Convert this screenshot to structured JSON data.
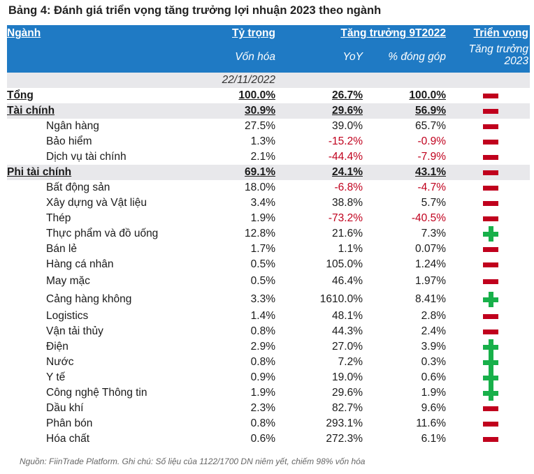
{
  "title": "Bảng 4: Đánh giá triển vọng tăng trưởng lợi nhuận 2023 theo ngành",
  "header": {
    "sector": "Ngành",
    "weight": "Tỷ trọng",
    "growth": "Tăng trưởng 9T2022",
    "outlook": "Triển vọng",
    "weight_sub": "Vốn hóa",
    "yoy": "YoY",
    "contribution": "% đóng góp",
    "outlook_sub_1": "Tăng trưởng",
    "outlook_sub_2": "2023",
    "date": "22/11/2022"
  },
  "rows": [
    {
      "name": "Tổng",
      "weight": "100.0%",
      "yoy": "26.7%",
      "contrib": "100.0%",
      "outlook": "minus",
      "level": "group"
    },
    {
      "name": "Tài chính",
      "weight": "30.9%",
      "yoy": "29.6%",
      "contrib": "56.9%",
      "outlook": "minus",
      "level": "group-shaded"
    },
    {
      "name": "Ngân hàng",
      "weight": "27.5%",
      "yoy": "39.0%",
      "contrib": "65.7%",
      "outlook": "minus",
      "level": "sub"
    },
    {
      "name": "Bảo hiểm",
      "weight": "1.3%",
      "yoy": "-15.2%",
      "contrib": "-0.9%",
      "outlook": "minus",
      "level": "sub"
    },
    {
      "name": "Dịch vụ tài chính",
      "weight": "2.1%",
      "yoy": "-44.4%",
      "contrib": "-7.9%",
      "outlook": "minus",
      "level": "sub"
    },
    {
      "name": "Phi tài chính",
      "weight": "69.1%",
      "yoy": "24.1%",
      "contrib": "43.1%",
      "outlook": "minus",
      "level": "group-shaded"
    },
    {
      "name": "Bất động sản",
      "weight": "18.0%",
      "yoy": "-6.8%",
      "contrib": "-4.7%",
      "outlook": "minus",
      "level": "sub"
    },
    {
      "name": "Xây dựng và Vật liệu",
      "weight": "3.4%",
      "yoy": "38.8%",
      "contrib": "5.7%",
      "outlook": "minus",
      "level": "sub"
    },
    {
      "name": "Thép",
      "weight": "1.9%",
      "yoy": "-73.2%",
      "contrib": "-40.5%",
      "outlook": "minus",
      "level": "sub"
    },
    {
      "name": "Thực phẩm và đồ uống",
      "weight": "12.8%",
      "yoy": "21.6%",
      "contrib": "7.3%",
      "outlook": "plus",
      "level": "sub"
    },
    {
      "name": "Bán lẻ",
      "weight": "1.7%",
      "yoy": "1.1%",
      "contrib": "0.07%",
      "outlook": "minus",
      "level": "sub"
    },
    {
      "name": "Hàng cá nhân",
      "weight": "0.5%",
      "yoy": "105.0%",
      "contrib": "1.24%",
      "outlook": "minus",
      "level": "sub"
    },
    {
      "name": "May mặc",
      "weight": "0.5%",
      "yoy": "46.4%",
      "contrib": "1.97%",
      "outlook": "minus",
      "level": "sub-tall"
    },
    {
      "name": "Cảng hàng không",
      "weight": "3.3%",
      "yoy": "1610.0%",
      "contrib": "8.41%",
      "outlook": "plus",
      "level": "sub-tall"
    },
    {
      "name": "Logistics",
      "weight": "1.4%",
      "yoy": "48.1%",
      "contrib": "2.8%",
      "outlook": "minus",
      "level": "sub"
    },
    {
      "name": "Vận tải thủy",
      "weight": "0.8%",
      "yoy": "44.3%",
      "contrib": "2.4%",
      "outlook": "minus",
      "level": "sub"
    },
    {
      "name": "Điện",
      "weight": "2.9%",
      "yoy": "27.0%",
      "contrib": "3.9%",
      "outlook": "plus",
      "level": "sub"
    },
    {
      "name": "Nước",
      "weight": "0.8%",
      "yoy": "7.2%",
      "contrib": "0.3%",
      "outlook": "plus",
      "level": "sub"
    },
    {
      "name": "Y tế",
      "weight": "0.9%",
      "yoy": "19.0%",
      "contrib": "0.6%",
      "outlook": "plus",
      "level": "sub"
    },
    {
      "name": "Công nghệ Thông tin",
      "weight": "1.9%",
      "yoy": "29.6%",
      "contrib": "1.9%",
      "outlook": "plus",
      "level": "sub"
    },
    {
      "name": "Dầu khí",
      "weight": "2.3%",
      "yoy": "82.7%",
      "contrib": "9.6%",
      "outlook": "minus",
      "level": "sub"
    },
    {
      "name": "Phân bón",
      "weight": "0.8%",
      "yoy": "293.1%",
      "contrib": "11.6%",
      "outlook": "minus",
      "level": "sub"
    },
    {
      "name": "Hóa chất",
      "weight": "0.6%",
      "yoy": "272.3%",
      "contrib": "6.1%",
      "outlook": "minus",
      "level": "sub"
    }
  ],
  "colors": {
    "header_bg": "#1f7ac4",
    "shaded_row": "#e8e8eb",
    "negative_text": "#c0001d",
    "minus_icon": "#c0001d",
    "plus_icon": "#18b04a"
  },
  "source": "Nguồn: FiinTrade Platform. Ghi chú: Số liệu của 1122/1700 DN niêm yết, chiếm 98% vốn hóa"
}
